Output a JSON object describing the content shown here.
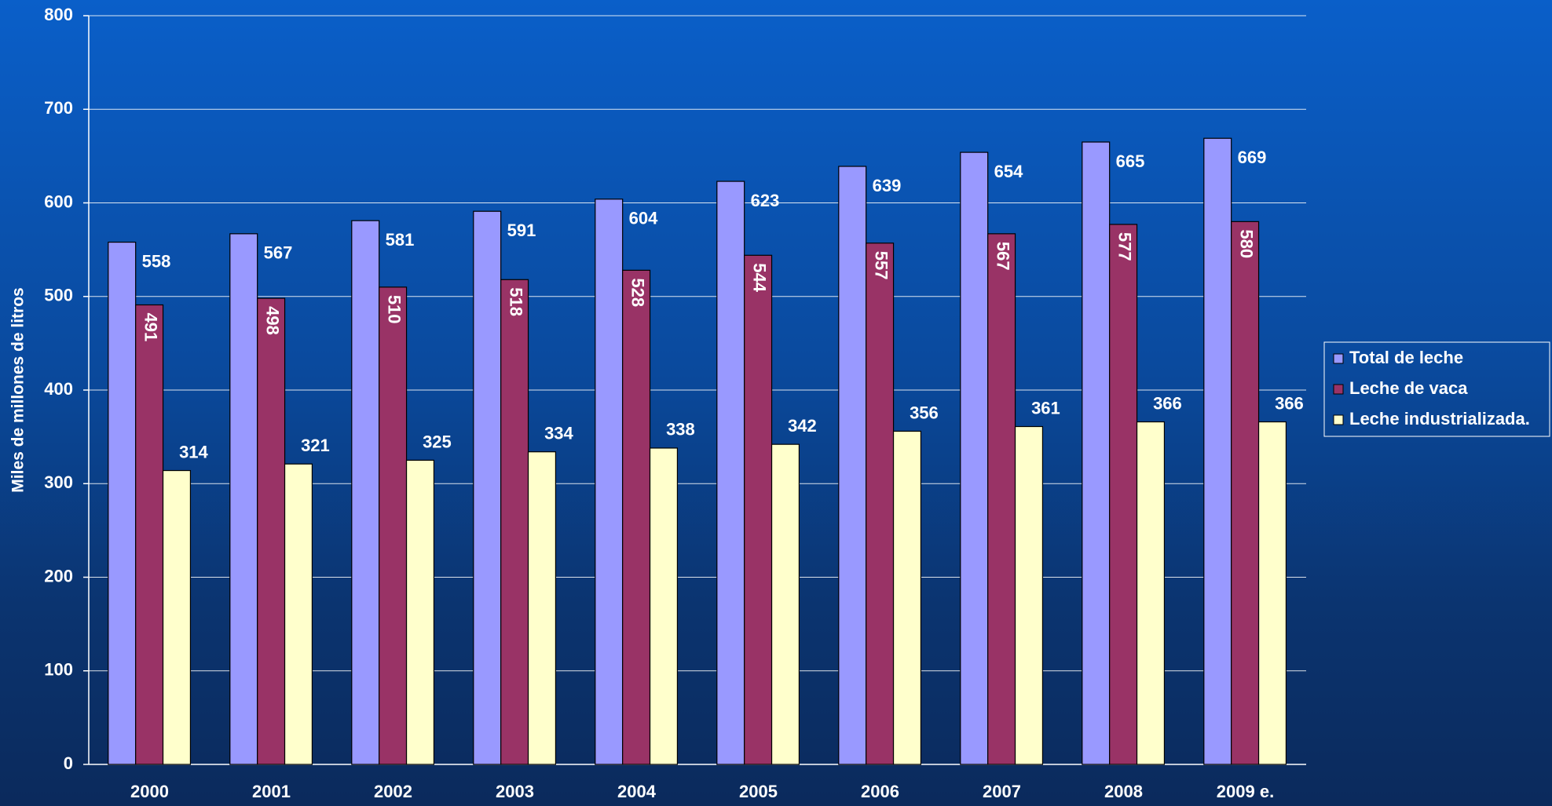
{
  "chart_data": {
    "type": "bar",
    "y_label": "Miles de millones de litros",
    "categories": [
      "2000",
      "2001",
      "2002",
      "2003",
      "2004",
      "2005",
      "2006",
      "2007",
      "2008",
      "2009 e."
    ],
    "series": [
      {
        "name": "Total de leche",
        "color": "#9999ff",
        "values": [
          558,
          567,
          581,
          591,
          604,
          623,
          639,
          654,
          665,
          669
        ]
      },
      {
        "name": "Leche de vaca",
        "color": "#993366",
        "values": [
          491,
          498,
          510,
          518,
          528,
          544,
          557,
          567,
          577,
          580
        ]
      },
      {
        "name": "Leche industrializada.",
        "color": "#ffffcc",
        "values": [
          314,
          321,
          325,
          334,
          338,
          342,
          356,
          361,
          366,
          366
        ]
      }
    ],
    "ylim": [
      0,
      800
    ],
    "yticks": [
      0,
      100,
      200,
      300,
      400,
      500,
      600,
      700,
      800
    ],
    "grid": true,
    "legend": "right"
  }
}
